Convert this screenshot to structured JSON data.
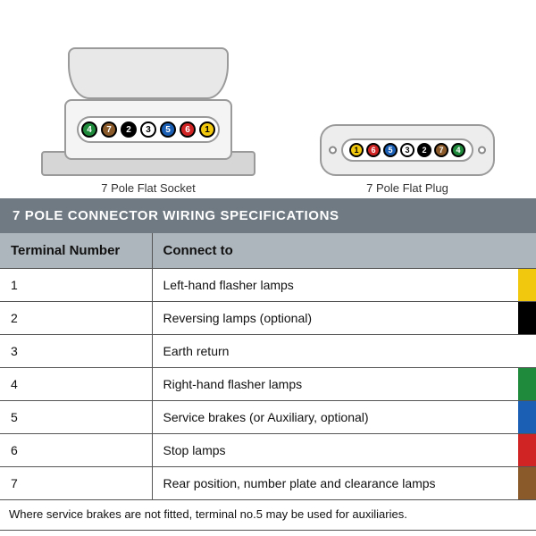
{
  "colors": {
    "title_bg": "#6f7a83",
    "title_text": "#ffffff",
    "head_bg": "#aeb6bd",
    "border": "#555555",
    "socket_outline": "#9a9a9a",
    "socket_fill": "#e8e8e8"
  },
  "diagrams": {
    "socket": {
      "caption": "7 Pole Flat Socket",
      "pins": [
        {
          "num": "4",
          "bg": "#1f8a3b",
          "fg": "#ffffff"
        },
        {
          "num": "7",
          "bg": "#8a5a2a",
          "fg": "#ffffff"
        },
        {
          "num": "2",
          "bg": "#000000",
          "fg": "#ffffff"
        },
        {
          "num": "3",
          "bg": "#ffffff",
          "fg": "#000000"
        },
        {
          "num": "5",
          "bg": "#1a5fb4",
          "fg": "#ffffff"
        },
        {
          "num": "6",
          "bg": "#d02424",
          "fg": "#ffffff"
        },
        {
          "num": "1",
          "bg": "#f2c80f",
          "fg": "#000000"
        }
      ]
    },
    "plug": {
      "caption": "7 Pole Flat Plug",
      "pins": [
        {
          "num": "1",
          "bg": "#f2c80f",
          "fg": "#000000"
        },
        {
          "num": "6",
          "bg": "#d02424",
          "fg": "#ffffff"
        },
        {
          "num": "5",
          "bg": "#1a5fb4",
          "fg": "#ffffff"
        },
        {
          "num": "3",
          "bg": "#ffffff",
          "fg": "#000000"
        },
        {
          "num": "2",
          "bg": "#000000",
          "fg": "#ffffff"
        },
        {
          "num": "7",
          "bg": "#8a5a2a",
          "fg": "#ffffff"
        },
        {
          "num": "4",
          "bg": "#1f8a3b",
          "fg": "#ffffff"
        }
      ]
    }
  },
  "spec": {
    "title": "7 POLE CONNECTOR WIRING SPECIFICATIONS",
    "columns": [
      "Terminal Number",
      "Connect to"
    ],
    "rows": [
      {
        "terminal": "1",
        "connect": "Left-hand flasher lamps",
        "swatch": "#f2c80f"
      },
      {
        "terminal": "2",
        "connect": "Reversing lamps (optional)",
        "swatch": "#000000"
      },
      {
        "terminal": "3",
        "connect": "Earth return",
        "swatch": "#ffffff"
      },
      {
        "terminal": "4",
        "connect": "Right-hand flasher lamps",
        "swatch": "#1f8a3b"
      },
      {
        "terminal": "5",
        "connect": "Service brakes (or Auxiliary, optional)",
        "swatch": "#1a5fb4"
      },
      {
        "terminal": "6",
        "connect": "Stop lamps",
        "swatch": "#d02424"
      },
      {
        "terminal": "7",
        "connect": "Rear position, number plate and clearance lamps",
        "swatch": "#8a5a2a"
      }
    ],
    "footnote": "Where service brakes are not fitted, terminal no.5 may be used for auxiliaries."
  }
}
